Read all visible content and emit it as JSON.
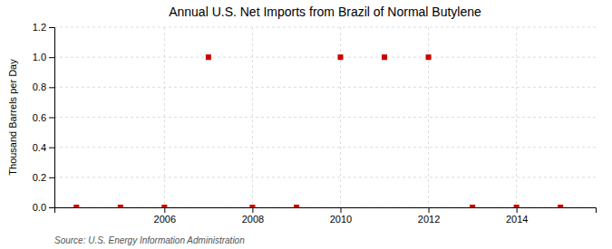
{
  "chart_data": {
    "type": "scatter",
    "title": "Annual U.S. Net Imports from Brazil of Normal Butylene",
    "ylabel": "Thousand Barrels per Day",
    "source": "Source: U.S. Energy Information Administration",
    "x": [
      2004,
      2005,
      2006,
      2007,
      2008,
      2009,
      2010,
      2011,
      2012,
      2013,
      2014,
      2015
    ],
    "values": [
      0,
      0,
      0,
      1,
      0,
      0,
      1,
      1,
      1,
      0,
      0,
      0
    ],
    "color": "#cc0000",
    "marker": "square",
    "xlim": [
      2003.5,
      2015.8
    ],
    "ylim": [
      0,
      1.2
    ],
    "xticks": [
      2006,
      2008,
      2010,
      2012,
      2014
    ],
    "yticks": [
      {
        "value": 0.0,
        "label": "0.0"
      },
      0.2,
      0.4,
      0.6,
      0.8,
      {
        "value": 1.0,
        "label": "1.0"
      },
      1.2
    ],
    "grid": true
  }
}
